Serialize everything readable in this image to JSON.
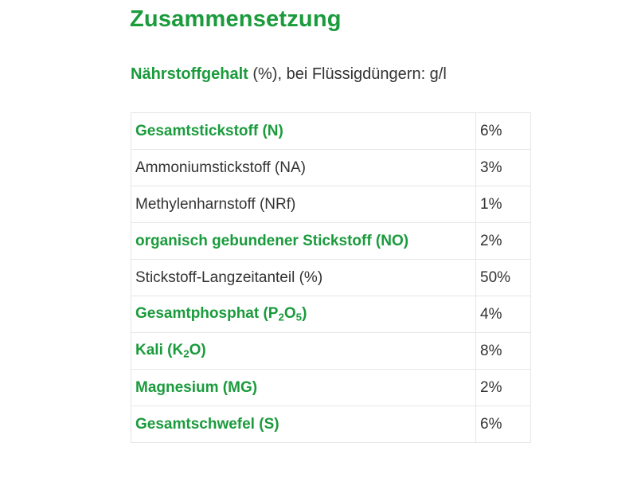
{
  "heading": "Zusammensetzung",
  "subtitle": {
    "strong": "Nährstoffgehalt",
    "rest": " (%), bei Flüssigdüngern: g/l"
  },
  "rows": [
    {
      "name": "Gesamtstickstoff (N)",
      "value": "6%",
      "bold": true
    },
    {
      "name": "Ammoniumstickstoff (NA)",
      "value": "3%",
      "bold": false
    },
    {
      "name": "Methylenharnstoff (NRf)",
      "value": "1%",
      "bold": false
    },
    {
      "name": "organisch gebundener Stickstoff (NO)",
      "value": "2%",
      "bold": true
    },
    {
      "name": "Stickstoff-Langzeitanteil (%)",
      "value": "50%",
      "bold": false
    },
    {
      "name_parts": [
        "Gesamtphosphat (P",
        "2",
        "O",
        "5",
        ")"
      ],
      "value": "4%",
      "bold": true
    },
    {
      "name_parts": [
        "Kali (K",
        "2",
        "O)"
      ],
      "value": "8%",
      "bold": true
    },
    {
      "name": "Magnesium (MG)",
      "value": "2%",
      "bold": true
    },
    {
      "name": "Gesamtschwefel (S)",
      "value": "6%",
      "bold": true
    }
  ]
}
